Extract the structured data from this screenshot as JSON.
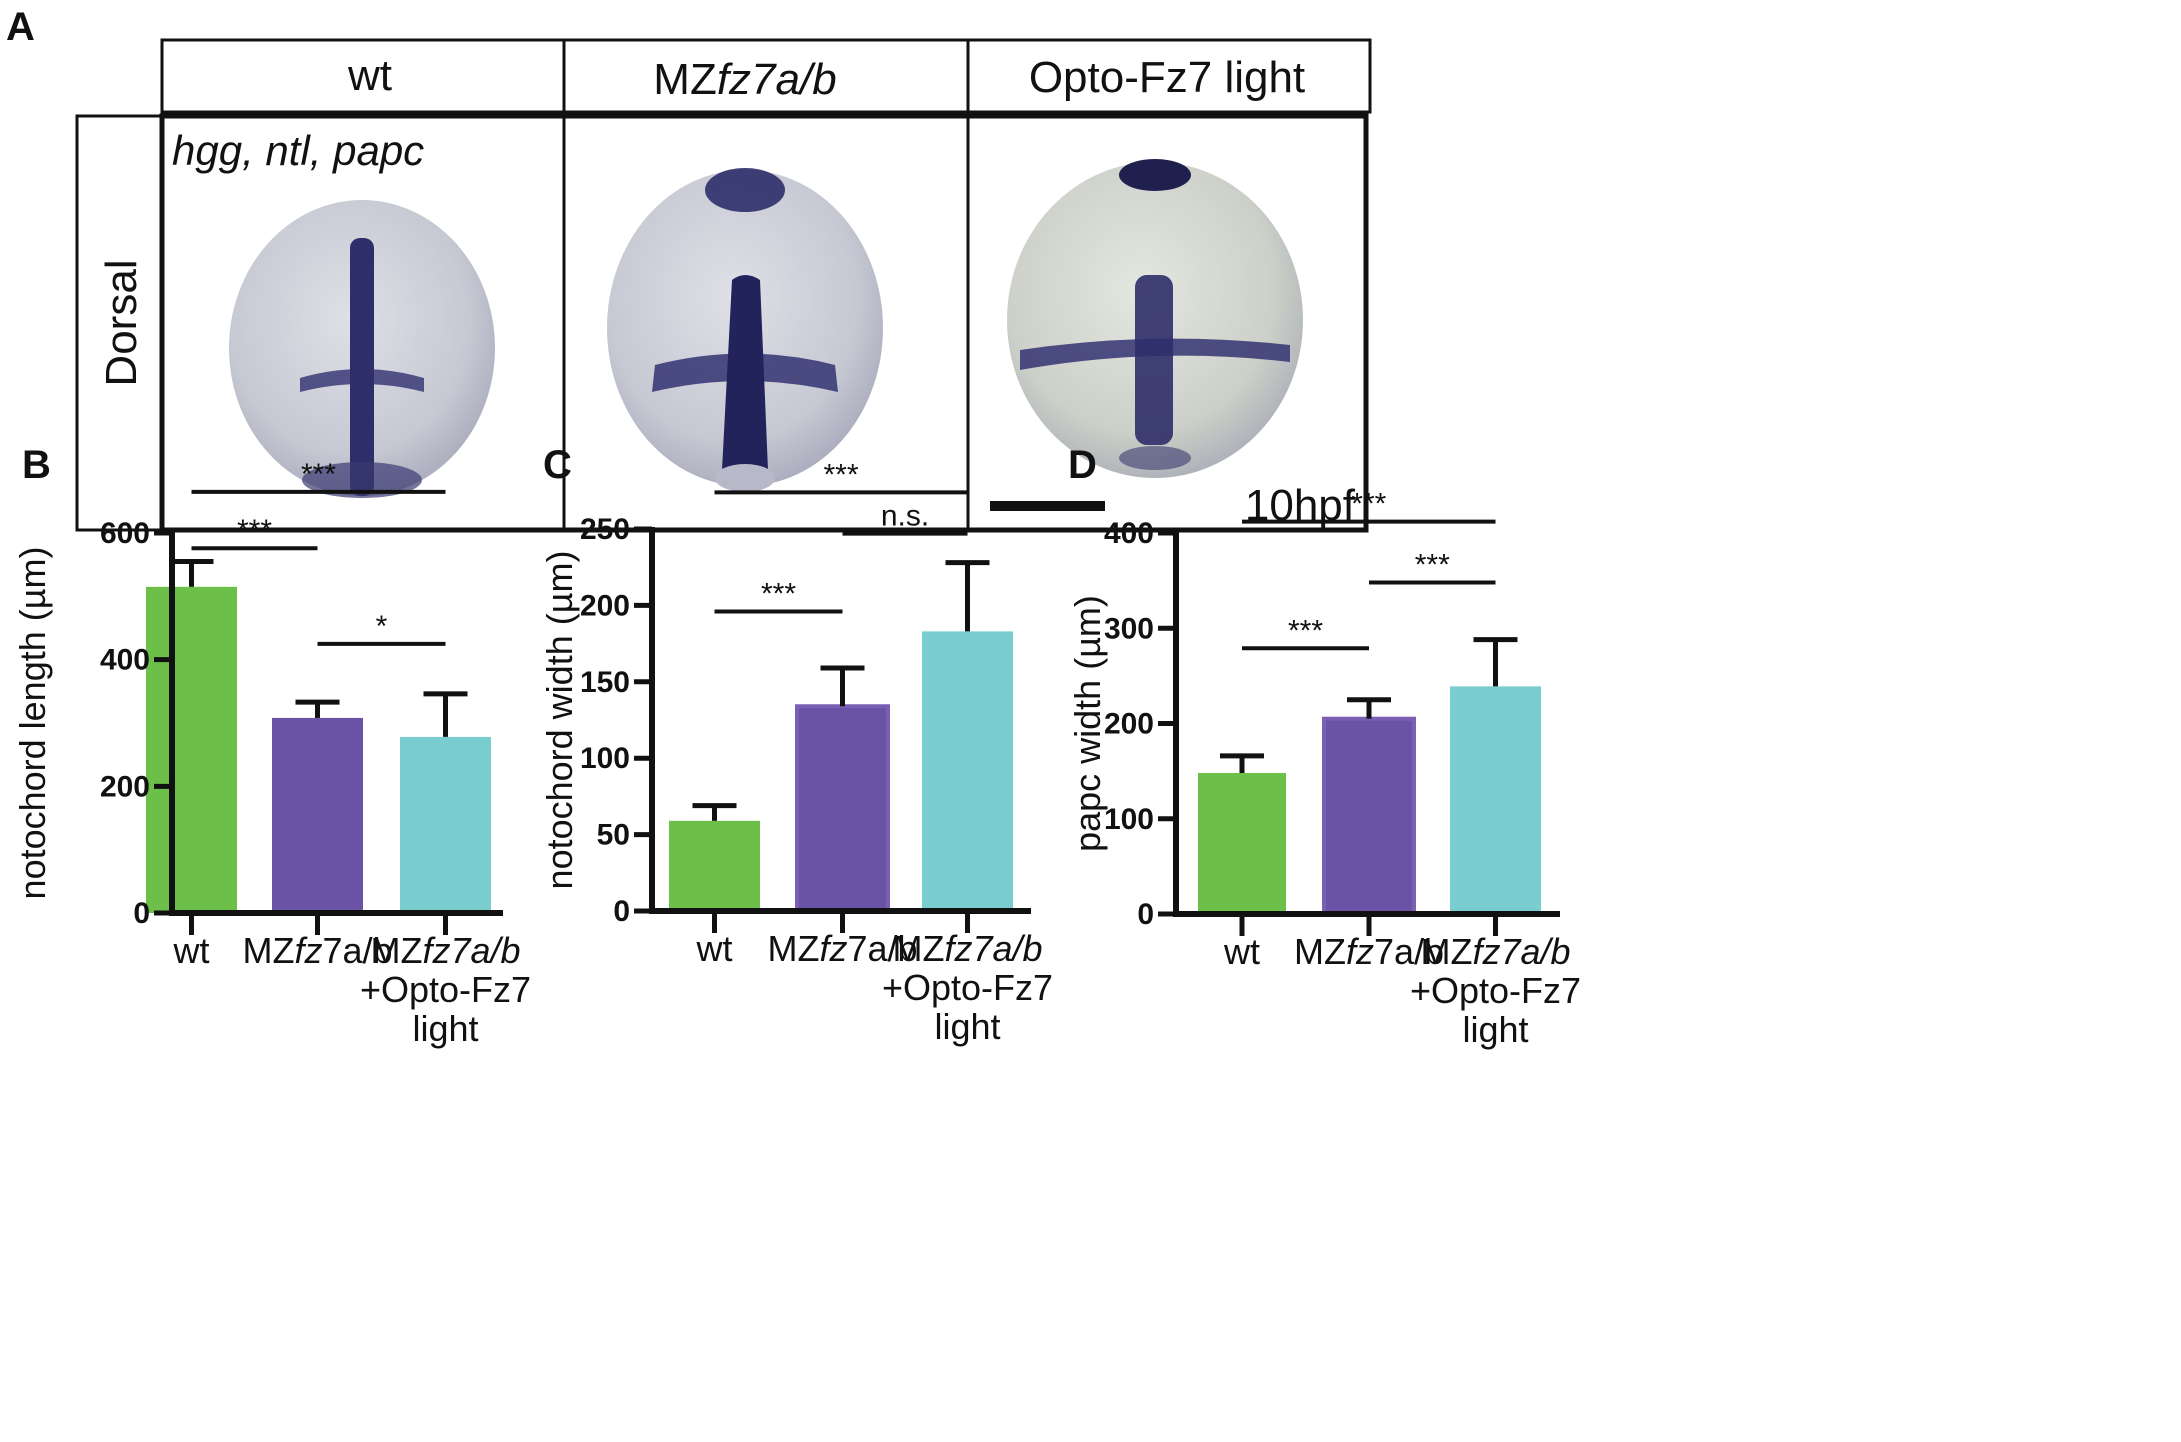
{
  "panel_a": {
    "letter": "A",
    "columns": [
      {
        "parts": [
          {
            "text": "wt",
            "italic": false
          }
        ]
      },
      {
        "parts": [
          {
            "text": "MZ",
            "italic": false
          },
          {
            "text": "fz7a/b",
            "italic": true
          }
        ]
      },
      {
        "parts": [
          {
            "text": "Opto-Fz7 light",
            "italic": false
          }
        ]
      }
    ],
    "row_label": "Dorsal",
    "stain_label": "hgg, ntl, papc",
    "stage_label": "10hpf",
    "colors": {
      "stain": "#2e2e6a",
      "embryo": "#c9cbd6",
      "embryo_edge": "#a9abbe"
    }
  },
  "chart_data": [
    {
      "panel": "B",
      "type": "bar",
      "categories": [
        [
          {
            "text": "wt"
          }
        ],
        [
          {
            "text": "MZ"
          },
          {
            "text": "fz",
            "italic": true
          },
          {
            "text": "7a/b"
          }
        ],
        [
          {
            "text": "MZ"
          },
          {
            "text": "fz7a/b",
            "italic": true
          },
          {
            "br": true
          },
          {
            "text": "+Opto-Fz7"
          },
          {
            "br": true
          },
          {
            "text": "light"
          }
        ]
      ],
      "values": [
        515,
        308,
        278
      ],
      "errors": [
        40,
        25,
        68
      ],
      "colors": [
        "#6cc04a",
        "#6a53a5",
        "#79cdcf"
      ],
      "ylabel": "notochord length (µm)",
      "ylim": [
        0,
        600
      ],
      "yticks": [
        0,
        200,
        400,
        600
      ],
      "significance": [
        {
          "from": 0,
          "to": 2,
          "label": "***",
          "y": 665
        },
        {
          "from": 0,
          "to": 1,
          "label": "***",
          "y": 576
        },
        {
          "from": 1,
          "to": 2,
          "label": "*",
          "y": 425
        }
      ]
    },
    {
      "panel": "C",
      "type": "bar",
      "categories": [
        [
          {
            "text": "wt"
          }
        ],
        [
          {
            "text": "MZ"
          },
          {
            "text": "fz",
            "italic": true
          },
          {
            "text": "7a/b"
          }
        ],
        [
          {
            "text": "MZ"
          },
          {
            "text": "fz7a/b",
            "italic": true
          },
          {
            "br": true
          },
          {
            "text": "+Opto-Fz7"
          },
          {
            "br": true
          },
          {
            "text": "light"
          }
        ]
      ],
      "values": [
        59,
        134,
        183
      ],
      "errors": [
        10,
        25,
        45
      ],
      "colors": [
        "#6cc04a",
        "#6a53a5",
        "#79cdcf"
      ],
      "ylabel": "notochord width (µm)",
      "ylim": [
        0,
        250
      ],
      "yticks": [
        0,
        50,
        100,
        150,
        200,
        250
      ],
      "significance": [
        {
          "from": 0,
          "to": 2,
          "label": "***",
          "y": 274
        },
        {
          "from": 1,
          "to": 2,
          "label": "n.s.",
          "y": 247
        },
        {
          "from": 0,
          "to": 1,
          "label": "***",
          "y": 196
        }
      ]
    },
    {
      "panel": "D",
      "type": "bar",
      "categories": [
        [
          {
            "text": "wt"
          }
        ],
        [
          {
            "text": "MZ"
          },
          {
            "text": "fz",
            "italic": true
          },
          {
            "text": "7a/b"
          }
        ],
        [
          {
            "text": "MZ"
          },
          {
            "text": "fz7a/b",
            "italic": true
          },
          {
            "br": true
          },
          {
            "text": "+Opto-Fz7"
          },
          {
            "br": true
          },
          {
            "text": "light"
          }
        ]
      ],
      "values": [
        148,
        205,
        239
      ],
      "errors": [
        18,
        20,
        49
      ],
      "colors": [
        "#6cc04a",
        "#6a53a5",
        "#79cdcf"
      ],
      "ylabel": "papc width (µm)",
      "ylim": [
        0,
        400
      ],
      "yticks": [
        0,
        100,
        200,
        300,
        400
      ],
      "significance": [
        {
          "from": 0,
          "to": 2,
          "label": "***",
          "y": 412
        },
        {
          "from": 1,
          "to": 2,
          "label": "***",
          "y": 348
        },
        {
          "from": 0,
          "to": 1,
          "label": "***",
          "y": 279
        }
      ]
    }
  ]
}
